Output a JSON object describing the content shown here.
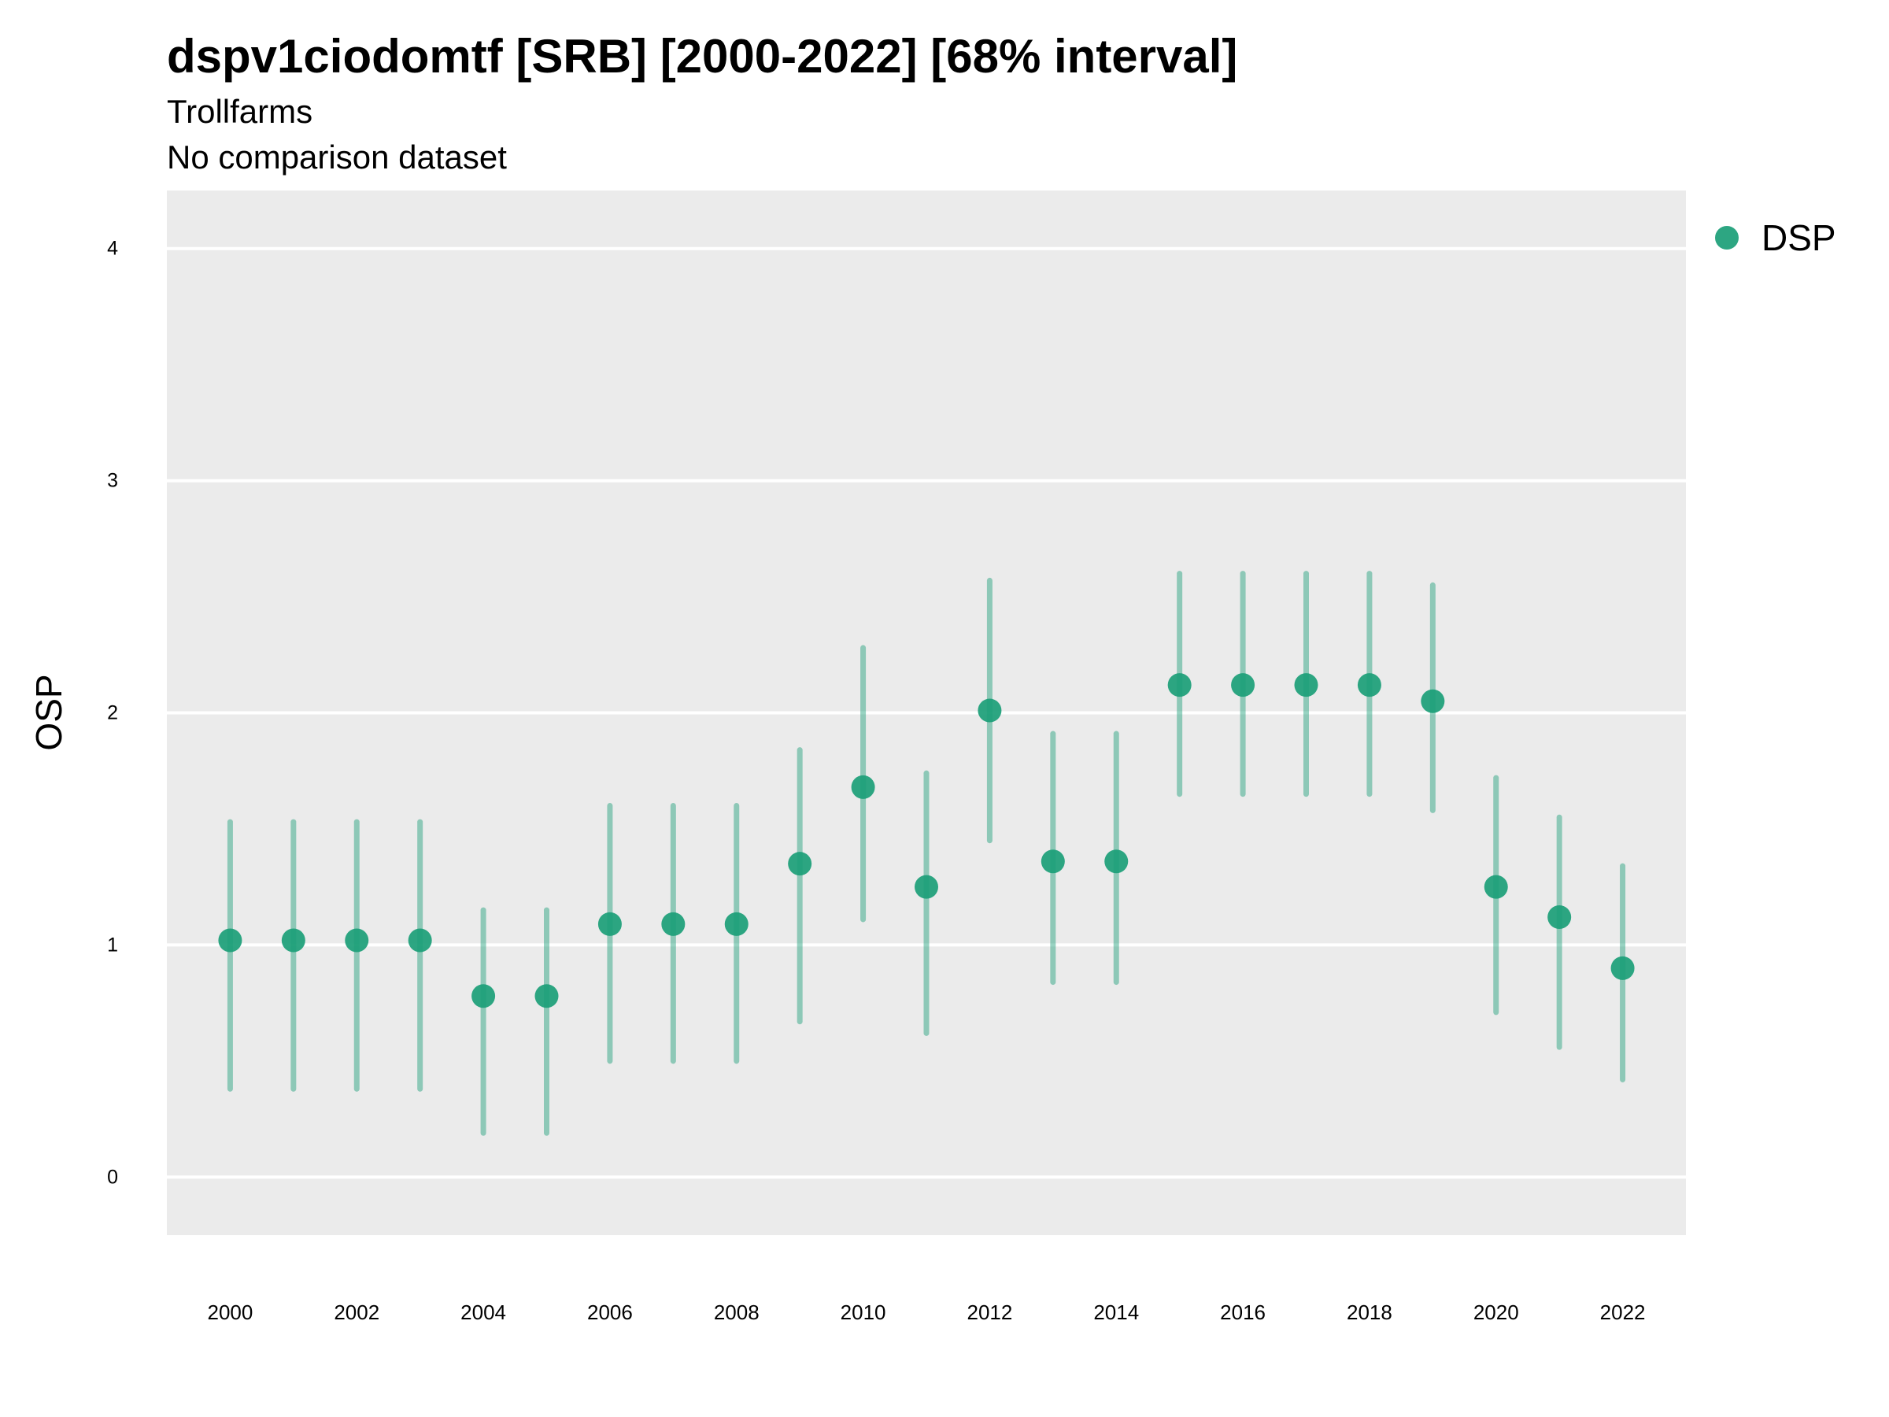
{
  "chart_data": {
    "type": "scatter",
    "title": "dspv1ciodomtf [SRB] [2000-2022] [68% interval]",
    "subtitle": "Trollfarms",
    "subtitle2": "No comparison dataset",
    "xlabel": "",
    "ylabel": "OSP",
    "xlim": [
      1999,
      2023
    ],
    "ylim": [
      -0.25,
      4.25
    ],
    "x_ticks": [
      2000,
      2002,
      2004,
      2006,
      2008,
      2010,
      2012,
      2014,
      2016,
      2018,
      2020,
      2022
    ],
    "y_ticks": [
      0,
      1,
      2,
      3,
      4
    ],
    "grid": true,
    "legend_position": "right",
    "series": [
      {
        "name": "DSP",
        "color": "#1b9e77",
        "x": [
          2000,
          2001,
          2002,
          2003,
          2004,
          2005,
          2006,
          2007,
          2008,
          2009,
          2010,
          2011,
          2012,
          2013,
          2014,
          2015,
          2016,
          2017,
          2018,
          2019,
          2020,
          2021,
          2022
        ],
        "values": [
          1.02,
          1.02,
          1.02,
          1.02,
          0.78,
          0.78,
          1.09,
          1.09,
          1.09,
          1.35,
          1.68,
          1.25,
          2.01,
          1.36,
          1.36,
          2.12,
          2.12,
          2.12,
          2.12,
          2.05,
          1.25,
          1.12,
          0.9
        ],
        "lower": [
          0.38,
          0.38,
          0.38,
          0.38,
          0.19,
          0.19,
          0.5,
          0.5,
          0.5,
          0.67,
          1.11,
          0.62,
          1.45,
          0.84,
          0.84,
          1.65,
          1.65,
          1.65,
          1.65,
          1.58,
          0.71,
          0.56,
          0.42
        ],
        "upper": [
          1.53,
          1.53,
          1.53,
          1.53,
          1.15,
          1.15,
          1.6,
          1.6,
          1.6,
          1.84,
          2.28,
          1.74,
          2.57,
          1.91,
          1.91,
          2.6,
          2.6,
          2.6,
          2.6,
          2.55,
          1.72,
          1.55,
          1.34
        ]
      }
    ]
  }
}
